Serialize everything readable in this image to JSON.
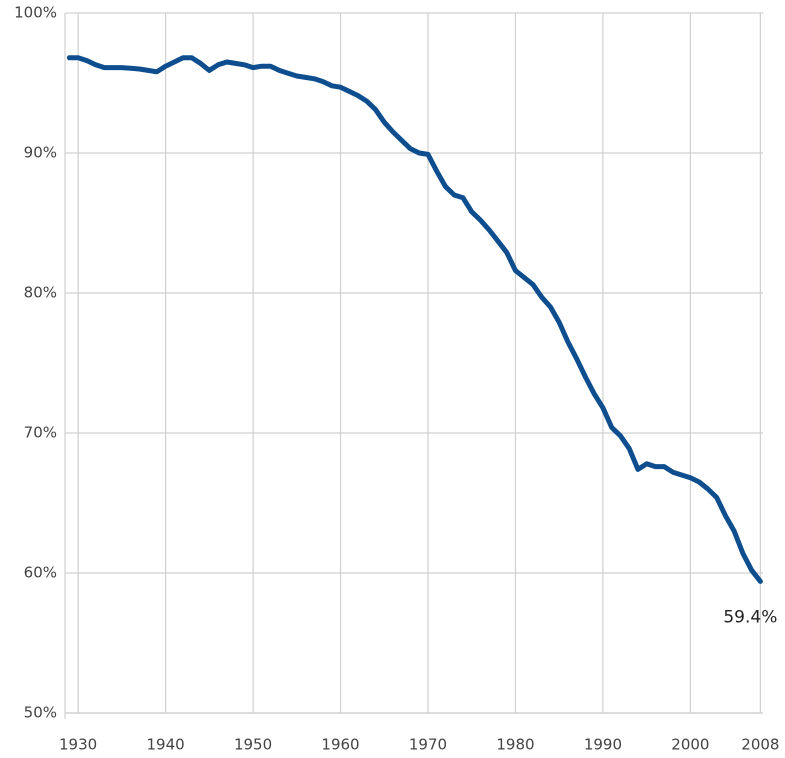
{
  "chart_data": {
    "type": "line",
    "x": [
      1929,
      1930,
      1931,
      1932,
      1933,
      1934,
      1935,
      1936,
      1937,
      1938,
      1939,
      1940,
      1941,
      1942,
      1943,
      1944,
      1945,
      1946,
      1947,
      1948,
      1949,
      1950,
      1951,
      1952,
      1953,
      1954,
      1955,
      1956,
      1957,
      1958,
      1959,
      1960,
      1961,
      1962,
      1963,
      1964,
      1965,
      1966,
      1967,
      1968,
      1969,
      1970,
      1971,
      1972,
      1973,
      1974,
      1975,
      1976,
      1977,
      1978,
      1979,
      1980,
      1981,
      1982,
      1983,
      1984,
      1985,
      1986,
      1987,
      1988,
      1989,
      1990,
      1991,
      1992,
      1993,
      1994,
      1995,
      1996,
      1997,
      1998,
      1999,
      2000,
      2001,
      2002,
      2003,
      2004,
      2005,
      2006,
      2007,
      2008
    ],
    "values": [
      96.8,
      96.8,
      96.6,
      96.3,
      96.1,
      96.1,
      96.1,
      96.05,
      96.0,
      95.9,
      95.8,
      96.2,
      96.5,
      96.8,
      96.8,
      96.4,
      95.9,
      96.3,
      96.5,
      96.4,
      96.3,
      96.1,
      96.2,
      96.2,
      95.9,
      95.7,
      95.5,
      95.4,
      95.3,
      95.1,
      94.8,
      94.7,
      94.4,
      94.1,
      93.7,
      93.1,
      92.2,
      91.5,
      90.9,
      90.3,
      90.0,
      89.9,
      88.7,
      87.6,
      87.0,
      86.8,
      85.8,
      85.2,
      84.5,
      83.7,
      82.9,
      81.6,
      81.1,
      80.6,
      79.7,
      79.0,
      77.9,
      76.5,
      75.3,
      74.0,
      72.8,
      71.8,
      70.4,
      69.8,
      68.9,
      67.4,
      67.8,
      67.6,
      67.6,
      67.2,
      67.0,
      66.8,
      66.5,
      66.0,
      65.4,
      64.1,
      63.0,
      61.4,
      60.2,
      59.4
    ],
    "value_labels": [
      null,
      null,
      null,
      null,
      null,
      null,
      null,
      null,
      null,
      null,
      null,
      null,
      null,
      null,
      null,
      null,
      null,
      null,
      null,
      null,
      null,
      null,
      null,
      null,
      null,
      null,
      null,
      null,
      null,
      null,
      null,
      null,
      null,
      null,
      null,
      null,
      null,
      null,
      null,
      null,
      null,
      null,
      null,
      null,
      null,
      null,
      null,
      null,
      null,
      null,
      null,
      null,
      null,
      null,
      null,
      null,
      null,
      null,
      null,
      null,
      null,
      null,
      null,
      null,
      null,
      null,
      null,
      null,
      null,
      null,
      null,
      null,
      null,
      null,
      null,
      null,
      null,
      null,
      null,
      "59.4%"
    ],
    "color": "#0e4e8e",
    "xlim": [
      1928.5,
      2008.3
    ],
    "xticks": [
      1930,
      1940,
      1950,
      1960,
      1970,
      1980,
      1990,
      2000,
      2008
    ],
    "ylim": [
      50,
      100
    ],
    "yticks": [
      {
        "value": 50,
        "label": "50%"
      },
      {
        "value": 60,
        "label": "60%"
      },
      {
        "value": 70,
        "label": "70%"
      },
      {
        "value": 80,
        "label": "80%"
      },
      {
        "value": 90,
        "label": "90%"
      },
      {
        "value": 100,
        "label": "100%"
      }
    ],
    "grid": true
  }
}
